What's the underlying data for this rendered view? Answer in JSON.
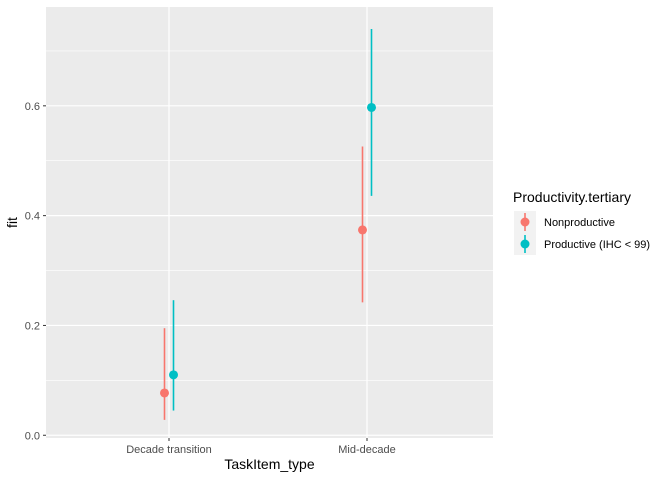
{
  "chart_data": {
    "type": "scatter",
    "subtype": "point-range",
    "xlabel": "TaskItem_type",
    "ylabel": "fit",
    "categories": [
      "Decade transition",
      "Mid-decade"
    ],
    "ylim": [
      -0.005,
      0.78
    ],
    "yticks": [
      0.0,
      0.2,
      0.4,
      0.6
    ],
    "ytick_labels": [
      "0.0",
      "0.2",
      "0.4",
      "0.6"
    ],
    "grid": true,
    "legend": {
      "title": "Productivity.tertiary",
      "position": "right"
    },
    "series": [
      {
        "name": "Nonproductive",
        "color": "#F8766D",
        "fit": [
          0.077,
          0.374
        ],
        "lower": [
          0.028,
          0.242
        ],
        "upper": [
          0.195,
          0.526
        ]
      },
      {
        "name": "Productive (IHC < 99)",
        "color": "#00BFC4",
        "fit": [
          0.11,
          0.597
        ],
        "lower": [
          0.045,
          0.436
        ],
        "upper": [
          0.246,
          0.74
        ]
      }
    ]
  }
}
